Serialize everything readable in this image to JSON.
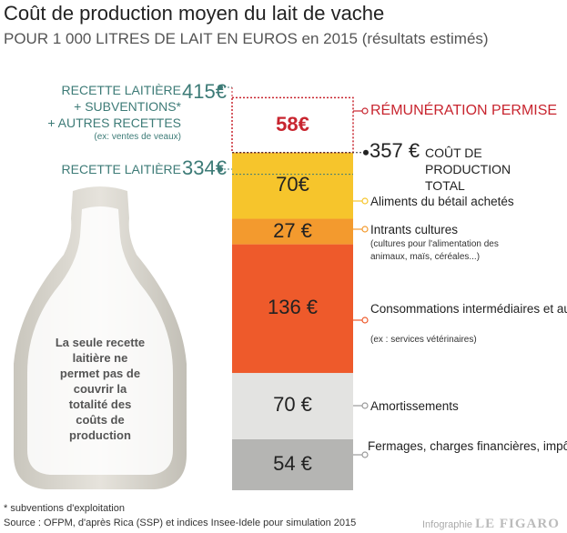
{
  "title": "Coût de production moyen du lait de vache",
  "subtitle": "POUR 1 000 LITRES DE LAIT EN EUROS en 2015 (résultats estimés)",
  "left_labels": {
    "total_revenue_lines": [
      "RECETTE LAITIÈRE",
      "+ SUBVENTIONS*",
      "+ AUTRES RECETTES"
    ],
    "total_revenue_note": "(ex: ventes de veaux)",
    "total_revenue_value": "415€",
    "milk_revenue_label": "RECETTE LAITIÈRE",
    "milk_revenue_value": "334€"
  },
  "bottle_text": "La seule recette laitière ne permet pas de couvrir la totalité des coûts de production",
  "total_cost": {
    "value": "357 €",
    "label": "COÛT DE PRODUCTION TOTAL"
  },
  "chart_data": {
    "type": "bar",
    "stacked": true,
    "title": "Coût de production moyen du lait de vache",
    "unit": "€ / 1 000 litres",
    "reference_lines": [
      {
        "label": "RECETTE LAITIÈRE + SUBVENTIONS* + AUTRES RECETTES",
        "value": 415
      },
      {
        "label": "RECETTE LAITIÈRE",
        "value": 334
      },
      {
        "label": "COÛT DE PRODUCTION TOTAL",
        "value": 357
      }
    ],
    "segments": [
      {
        "name": "Fermages, charges financières, impôts et taxes, assurances et frais de personnel salarié",
        "value": 54,
        "display": "54 €",
        "note": "",
        "color": "#b5b5b3"
      },
      {
        "name": "Amortissements",
        "value": 70,
        "display": "70 €",
        "note": "",
        "color": "#e3e3e1"
      },
      {
        "name": "Consommations intermédiaires et autres approvisionnements",
        "value": 136,
        "display": "136 €",
        "note": "(ex : services vétérinaires)",
        "color": "#ee5a2b"
      },
      {
        "name": "Intrants cultures",
        "value": 27,
        "display": "27 €",
        "note": "(cultures pour l'alimentation des animaux, maïs, céréales...)",
        "color": "#f39a2e"
      },
      {
        "name": "Aliments du bétail achetés",
        "value": 70,
        "display": "70€",
        "note": "",
        "color": "#f6c52c"
      },
      {
        "name": "RÉMUNÉRATION PERMISE",
        "value": 58,
        "display": "58€",
        "note": "",
        "color": "#ffffff"
      }
    ]
  },
  "footnote": "* subventions d'exploitation",
  "source": "Source : OFPM, d'après Rica (SSP) et indices Insee-Idele pour simulation 2015",
  "credit": {
    "prefix": "Infographie",
    "brand": "LE FIGARO"
  }
}
